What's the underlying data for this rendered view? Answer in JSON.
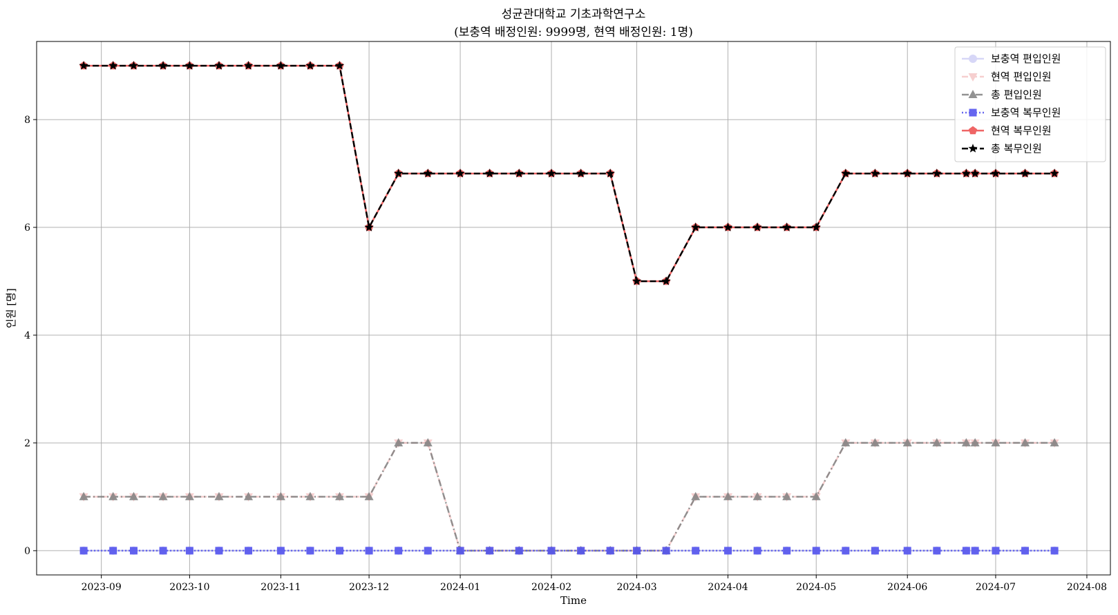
{
  "chart_data": {
    "type": "line",
    "title": "성균관대학교 기초과학연구소",
    "subtitle": "(보충역 배정인원: 9999명, 현역 배정인원: 1명)",
    "xlabel": "Time",
    "ylabel": "인원 [명]",
    "grid": true,
    "legend_position": "top-right",
    "xlim": [
      "2023-08-10",
      "2024-08-09"
    ],
    "ylim": [
      -0.45,
      9.45
    ],
    "x_ticks": [
      "2023-09",
      "2023-10",
      "2023-11",
      "2023-12",
      "2024-01",
      "2024-02",
      "2024-03",
      "2024-04",
      "2024-05",
      "2024-06",
      "2024-07",
      "2024-08"
    ],
    "y_ticks": [
      0,
      2,
      4,
      6,
      8
    ],
    "x": [
      "2023-08-26",
      "2023-09-05",
      "2023-09-12",
      "2023-09-22",
      "2023-10-01",
      "2023-10-11",
      "2023-10-21",
      "2023-11-01",
      "2023-11-11",
      "2023-11-21",
      "2023-12-01",
      "2023-12-11",
      "2023-12-21",
      "2024-01-01",
      "2024-01-11",
      "2024-01-21",
      "2024-02-01",
      "2024-02-11",
      "2024-02-21",
      "2024-03-01",
      "2024-03-11",
      "2024-03-21",
      "2024-04-01",
      "2024-04-11",
      "2024-04-21",
      "2024-05-01",
      "2024-05-11",
      "2024-05-21",
      "2024-06-01",
      "2024-06-11",
      "2024-06-21",
      "2024-06-24",
      "2024-07-01",
      "2024-07-11",
      "2024-07-21"
    ],
    "series": [
      {
        "name": "보충역 편입인원",
        "color": "#b0b0f0",
        "style": "solid",
        "marker": "circle",
        "opacity": 0.5,
        "values": [
          0,
          0,
          0,
          0,
          0,
          0,
          0,
          0,
          0,
          0,
          0,
          0,
          0,
          0,
          0,
          0,
          0,
          0,
          0,
          0,
          0,
          0,
          0,
          0,
          0,
          0,
          0,
          0,
          0,
          0,
          0,
          0,
          0,
          0,
          0
        ]
      },
      {
        "name": "현역 편입인원",
        "color": "#f0a8a8",
        "style": "dashed",
        "marker": "triangle-down",
        "opacity": 0.55,
        "values": [
          1,
          1,
          1,
          1,
          1,
          1,
          1,
          1,
          1,
          1,
          1,
          2,
          2,
          0,
          0,
          0,
          0,
          0,
          0,
          0,
          0,
          1,
          1,
          1,
          1,
          1,
          2,
          2,
          2,
          2,
          2,
          2,
          2,
          2,
          2
        ]
      },
      {
        "name": "총 편입인원",
        "color": "#808080",
        "style": "dashdot",
        "marker": "triangle-up",
        "opacity": 0.85,
        "values": [
          1,
          1,
          1,
          1,
          1,
          1,
          1,
          1,
          1,
          1,
          1,
          2,
          2,
          0,
          0,
          0,
          0,
          0,
          0,
          0,
          0,
          1,
          1,
          1,
          1,
          1,
          2,
          2,
          2,
          2,
          2,
          2,
          2,
          2,
          2
        ]
      },
      {
        "name": "보충역 복무인원",
        "color": "#5555ee",
        "style": "dotted",
        "marker": "square",
        "opacity": 0.9,
        "values": [
          0,
          0,
          0,
          0,
          0,
          0,
          0,
          0,
          0,
          0,
          0,
          0,
          0,
          0,
          0,
          0,
          0,
          0,
          0,
          0,
          0,
          0,
          0,
          0,
          0,
          0,
          0,
          0,
          0,
          0,
          0,
          0,
          0,
          0,
          0
        ]
      },
      {
        "name": "현역 복무인원",
        "color": "#ee5555",
        "style": "solid",
        "marker": "pentagon",
        "opacity": 0.9,
        "values": [
          9,
          9,
          9,
          9,
          9,
          9,
          9,
          9,
          9,
          9,
          6,
          7,
          7,
          7,
          7,
          7,
          7,
          7,
          7,
          5,
          5,
          6,
          6,
          6,
          6,
          6,
          7,
          7,
          7,
          7,
          7,
          7,
          7,
          7,
          7
        ]
      },
      {
        "name": "총 복무인원",
        "color": "#000000",
        "style": "dashed",
        "marker": "star",
        "opacity": 1,
        "values": [
          9,
          9,
          9,
          9,
          9,
          9,
          9,
          9,
          9,
          9,
          6,
          7,
          7,
          7,
          7,
          7,
          7,
          7,
          7,
          5,
          5,
          6,
          6,
          6,
          6,
          6,
          7,
          7,
          7,
          7,
          7,
          7,
          7,
          7,
          7
        ]
      }
    ]
  }
}
